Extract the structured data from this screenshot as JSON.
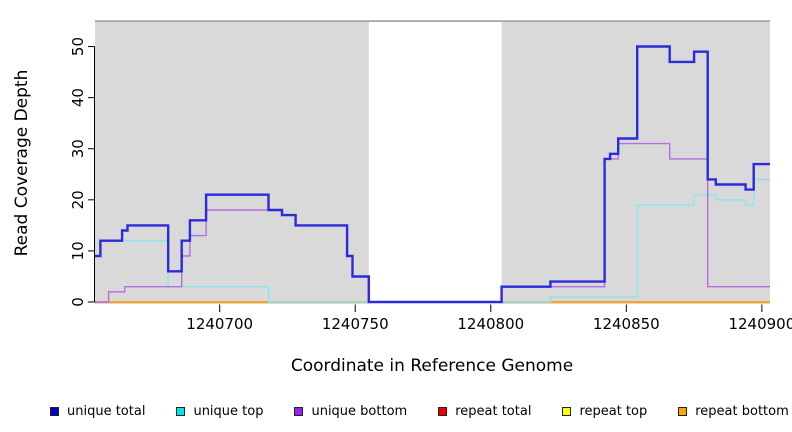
{
  "chart_data": {
    "type": "line",
    "subtype": "step-after",
    "title": "",
    "xlabel": "Coordinate in Reference Genome",
    "ylabel": "Read Coverage Depth",
    "x_range": [
      1240654,
      1240903
    ],
    "y_range": [
      0,
      55
    ],
    "x_ticks": [
      1240700,
      1240750,
      1240800,
      1240850,
      1240900
    ],
    "y_ticks": [
      0,
      10,
      20,
      30,
      40,
      50
    ],
    "grid": "off",
    "panel_bg": "#d9d9d9",
    "panel_border_top_color": "#8c8c8c",
    "gap_region": {
      "start": 1240755,
      "end": 1240804,
      "color": "#ffffff"
    },
    "legend_position": "bottom",
    "draw_order": [
      "repeat total",
      "repeat top",
      "repeat bottom",
      "unique top",
      "unique bottom",
      "unique total"
    ],
    "series": [
      {
        "name": "unique total",
        "legend_color": "#0000cd",
        "line_color": "#2b2bdb",
        "line_width": 2.4,
        "points": [
          [
            1240654,
            9
          ],
          [
            1240656,
            12
          ],
          [
            1240664,
            14
          ],
          [
            1240666,
            15
          ],
          [
            1240681,
            6
          ],
          [
            1240686,
            12
          ],
          [
            1240689,
            16
          ],
          [
            1240695,
            21
          ],
          [
            1240718,
            18
          ],
          [
            1240723,
            17
          ],
          [
            1240728,
            15
          ],
          [
            1240747,
            9
          ],
          [
            1240749,
            5
          ],
          [
            1240755,
            0
          ],
          [
            1240804,
            3
          ],
          [
            1240822,
            4
          ],
          [
            1240842,
            28
          ],
          [
            1240844,
            29
          ],
          [
            1240847,
            32
          ],
          [
            1240854,
            50
          ],
          [
            1240866,
            47
          ],
          [
            1240875,
            49
          ],
          [
            1240880,
            24
          ],
          [
            1240883,
            23
          ],
          [
            1240894,
            22
          ],
          [
            1240897,
            27
          ]
        ]
      },
      {
        "name": "unique top",
        "legend_color": "#00e5ee",
        "line_color": "#8ce6e8",
        "line_width": 1.4,
        "points": [
          [
            1240654,
            9
          ],
          [
            1240656,
            12
          ],
          [
            1240681,
            3
          ],
          [
            1240718,
            0
          ],
          [
            1240822,
            1
          ],
          [
            1240854,
            19
          ],
          [
            1240875,
            21
          ],
          [
            1240883,
            20
          ],
          [
            1240894,
            19
          ],
          [
            1240897,
            24
          ]
        ]
      },
      {
        "name": "unique bottom",
        "legend_color": "#a020f0",
        "line_color": "#b66fe0",
        "line_width": 1.4,
        "points": [
          [
            1240654,
            0
          ],
          [
            1240659,
            2
          ],
          [
            1240665,
            3
          ],
          [
            1240686,
            9
          ],
          [
            1240689,
            13
          ],
          [
            1240695,
            18
          ],
          [
            1240723,
            17
          ],
          [
            1240728,
            15
          ],
          [
            1240747,
            9
          ],
          [
            1240749,
            5
          ],
          [
            1240755,
            0
          ],
          [
            1240804,
            3
          ],
          [
            1240842,
            28
          ],
          [
            1240847,
            31
          ],
          [
            1240866,
            28
          ],
          [
            1240880,
            3
          ]
        ]
      },
      {
        "name": "repeat total",
        "legend_color": "#ee0000",
        "line_color": "#e0559a",
        "line_width": 1.4,
        "points": [
          [
            1240654,
            0
          ]
        ]
      },
      {
        "name": "repeat top",
        "legend_color": "#ffff00",
        "line_color": "#f0f000",
        "line_width": 1.4,
        "points": [
          [
            1240654,
            0
          ]
        ]
      },
      {
        "name": "repeat bottom",
        "legend_color": "#ffa500",
        "line_color": "#ffa217",
        "line_width": 1.8,
        "points": [
          [
            1240654,
            0
          ]
        ]
      }
    ]
  }
}
